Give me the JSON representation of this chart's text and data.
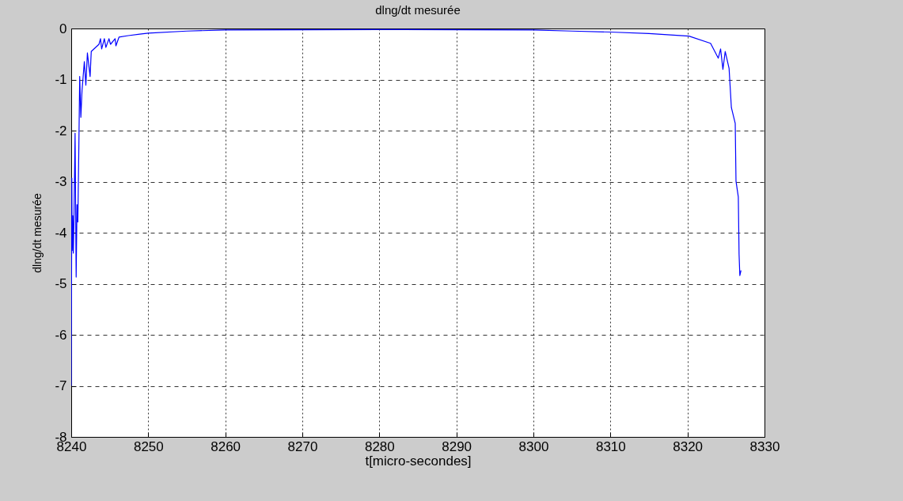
{
  "chart_data": {
    "type": "line",
    "title": "dlng/dt mesurée",
    "xlabel": "t[micro-secondes]",
    "ylabel": "dlng/dt mesurée",
    "xlim": [
      8240,
      8330
    ],
    "xticks": [
      8240,
      8250,
      8260,
      8270,
      8280,
      8290,
      8300,
      8310,
      8320,
      8330
    ],
    "ylim": [
      -8,
      0
    ],
    "yticks": [
      -8,
      -7,
      -6,
      -5,
      -4,
      -3,
      -2,
      -1,
      0
    ],
    "grid": true,
    "line_style": "solid",
    "series": [
      {
        "color": "#0000ff",
        "x": [
          8240.0,
          8240.08,
          8240.12,
          8240.2,
          8240.27,
          8240.35,
          8240.5,
          8240.64,
          8240.75,
          8240.86,
          8241.0,
          8241.1,
          8241.25,
          8241.4,
          8241.7,
          8241.9,
          8242.1,
          8242.45,
          8242.6,
          8243.6,
          8243.8,
          8243.95,
          8244.3,
          8244.5,
          8244.9,
          8245.1,
          8245.7,
          8245.8,
          8246.2,
          8247.4,
          8248.9,
          8250,
          8255,
          8260,
          8280,
          8300,
          8305,
          8310,
          8315,
          8320.2,
          8323.0,
          8324.0,
          8324.3,
          8324.6,
          8324.9,
          8325.4,
          8325.7,
          8326.2,
          8326.3,
          8326.6,
          8326.7,
          8326.8,
          8326.95
        ],
        "values": [
          -7.0,
          -2.93,
          -4.35,
          -3.67,
          -4.4,
          -3.79,
          -2.05,
          -4.87,
          -3.45,
          -3.79,
          -2.19,
          -0.94,
          -1.74,
          -1.22,
          -0.65,
          -1.11,
          -0.48,
          -0.94,
          -0.45,
          -0.31,
          -0.2,
          -0.4,
          -0.2,
          -0.37,
          -0.2,
          -0.31,
          -0.2,
          -0.34,
          -0.17,
          -0.14,
          -0.11,
          -0.09,
          -0.05,
          -0.03,
          -0.02,
          -0.03,
          -0.05,
          -0.07,
          -0.1,
          -0.15,
          -0.29,
          -0.58,
          -0.4,
          -0.8,
          -0.45,
          -0.78,
          -1.55,
          -1.86,
          -2.99,
          -3.3,
          -4.43,
          -4.84,
          -4.74
        ]
      }
    ]
  }
}
